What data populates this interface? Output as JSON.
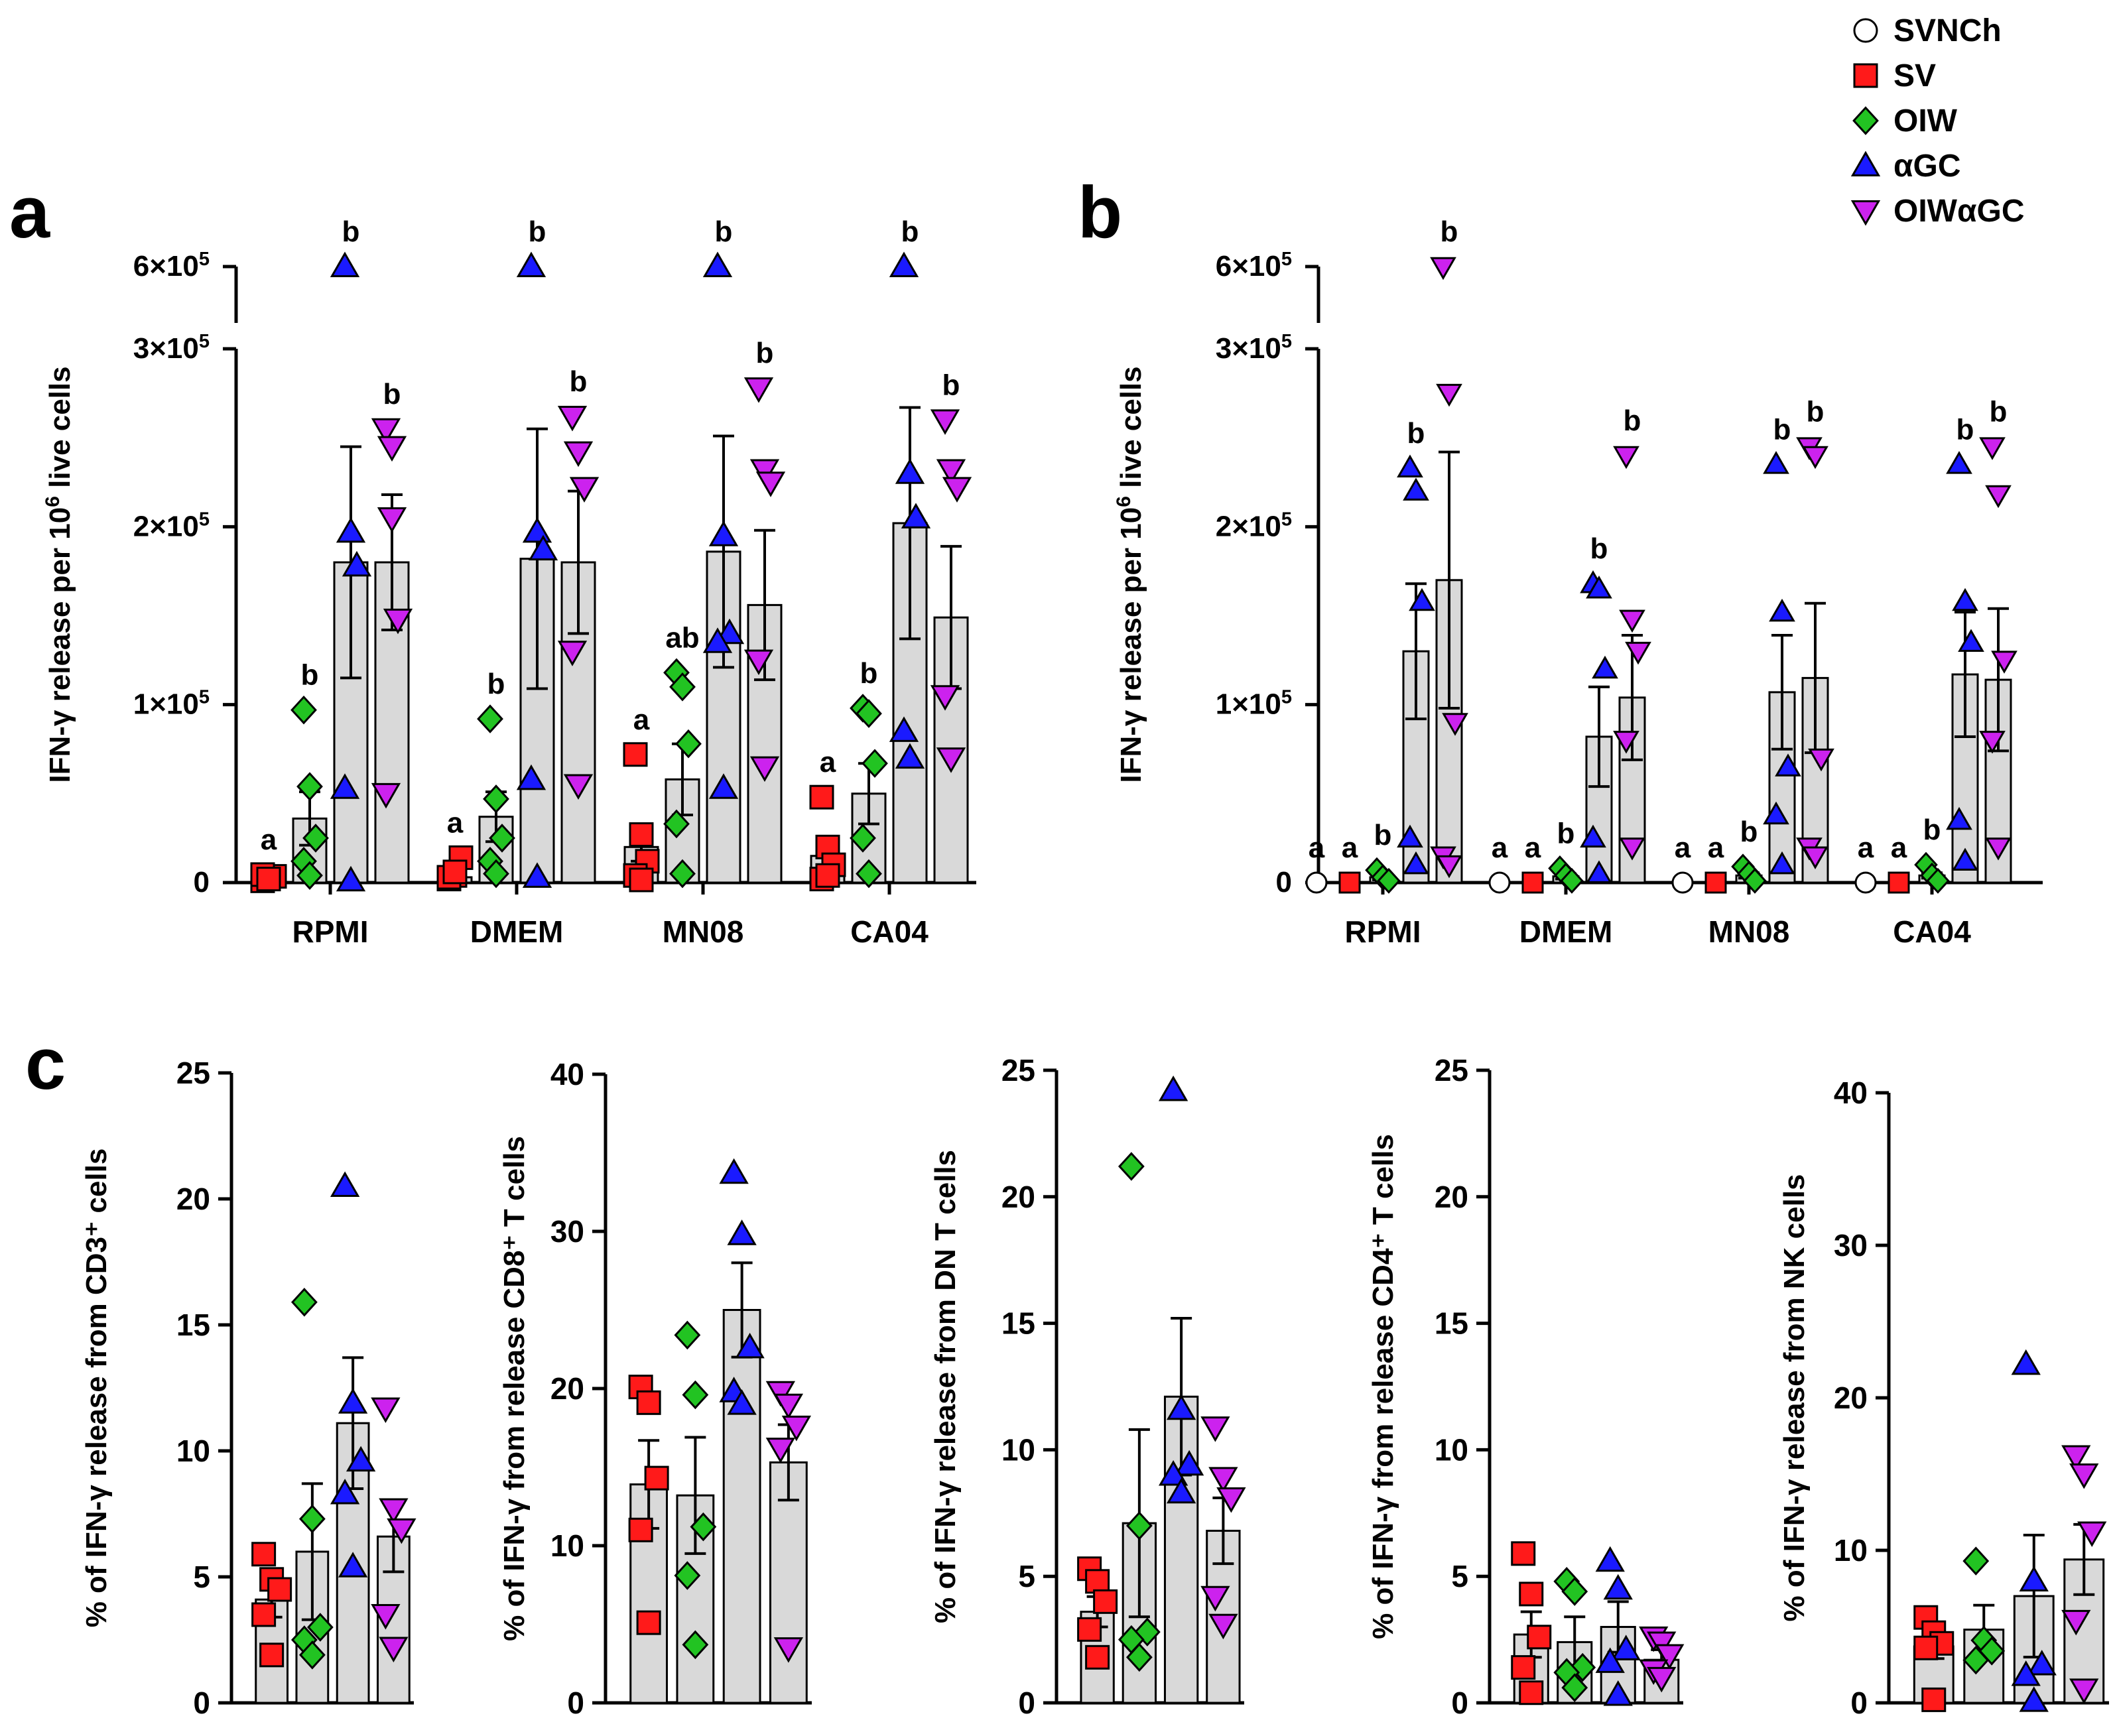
{
  "legend": [
    {
      "name": "SVNCh",
      "marker": "circle",
      "color": "#ffffff"
    },
    {
      "name": "SV",
      "marker": "square",
      "color": "#ff1a1a"
    },
    {
      "name": "OIW",
      "marker": "diamond",
      "color": "#22c322"
    },
    {
      "name": "αGC",
      "marker": "triangle",
      "color": "#1a1aff"
    },
    {
      "name": "OIWαGC",
      "marker": "triangle-down",
      "color": "#cc22ee"
    }
  ],
  "colors": {
    "bar_fill": "#d9d9d9",
    "axis": "#000000"
  },
  "chart_data": [
    {
      "panel_label": "a",
      "type": "bar",
      "ylabel_main": "IFN-γ release per 10",
      "ylabel_sup": "6",
      "ylabel_tail": " live cells",
      "categories": [
        "RPMI",
        "DMEM",
        "MN08",
        "CA04"
      ],
      "groups": [
        "SV",
        "OIW",
        "αGC",
        "OIWαGC"
      ],
      "ylim": [
        0,
        300000
      ],
      "broken_top_tick": {
        "base": "6×10",
        "exp": "5",
        "value": 600000
      },
      "yticks": [
        {
          "value": 0,
          "base": "0",
          "exp": ""
        },
        {
          "value": 100000,
          "base": "1×10",
          "exp": "5"
        },
        {
          "value": 200000,
          "base": "2×10",
          "exp": "5"
        },
        {
          "value": 300000,
          "base": "3×10",
          "exp": "5"
        }
      ],
      "series": [
        {
          "name": "SV",
          "marker": "square",
          "color": "#ff1a1a",
          "means": [
            2000,
            3000,
            20000,
            15000
          ],
          "sems": [
            1000,
            2000,
            8000,
            6000
          ],
          "letters": [
            "a",
            "a",
            "a",
            "a"
          ],
          "points": [
            [
              1000,
              2500,
              3500,
              4500,
              2000
            ],
            [
              2000,
              4000,
              14000,
              3000,
              6000
            ],
            [
              72000,
              27000,
              12000,
              4000,
              1500
            ],
            [
              48000,
              20000,
              10000,
              2000,
              4000
            ]
          ]
        },
        {
          "name": "OIW",
          "marker": "diamond",
          "color": "#22c322",
          "means": [
            36000,
            37000,
            58000,
            50000
          ],
          "sems": [
            15000,
            14000,
            20000,
            17000
          ],
          "letters": [
            "b",
            "b",
            "ab",
            "b"
          ],
          "points": [
            [
              97000,
              54000,
              25000,
              12000,
              4000
            ],
            [
              92000,
              47000,
              25000,
              12000,
              5000
            ],
            [
              118000,
              110000,
              78000,
              33000,
              5000
            ],
            [
              98000,
              95000,
              67000,
              25000,
              5000
            ]
          ]
        },
        {
          "name": "αGC",
          "marker": "triangle",
          "color": "#1a1aff",
          "means": [
            180000,
            182000,
            186000,
            202000
          ],
          "sems": [
            65000,
            73000,
            65000,
            65000
          ],
          "letters": [
            "b",
            "b",
            "b",
            "b"
          ],
          "points": [
            [
              600000,
              197000,
              178000,
              53000,
              1000
            ],
            [
              600000,
              197000,
              187000,
              58000,
              3000
            ],
            [
              600000,
              195000,
              140000,
              135000,
              53000
            ],
            [
              600000,
              230000,
              205000,
              85000,
              70000
            ]
          ]
        },
        {
          "name": "OIWαGC",
          "marker": "triangle-down",
          "color": "#cc22ee",
          "means": [
            180000,
            180000,
            156000,
            149000
          ],
          "sems": [
            38000,
            40000,
            42000,
            40000
          ],
          "letters": [
            "b",
            "b",
            "b",
            "b"
          ],
          "points": [
            [
              255000,
              245000,
              148000,
              50000,
              205000
            ],
            [
              262000,
              242000,
              222000,
              130000,
              55000
            ],
            [
              278000,
              232000,
              225000,
              125000,
              65000
            ],
            [
              260000,
              232000,
              222000,
              105000,
              70000
            ]
          ]
        }
      ]
    },
    {
      "panel_label": "b",
      "type": "bar",
      "ylabel_main": "IFN-γ release per 10",
      "ylabel_sup": "6",
      "ylabel_tail": " live cells",
      "categories": [
        "RPMI",
        "DMEM",
        "MN08",
        "CA04"
      ],
      "groups": [
        "SVNCh",
        "SV",
        "OIW",
        "αGC",
        "OIWαGC"
      ],
      "ylim": [
        0,
        300000
      ],
      "broken_top_tick": {
        "base": "6×10",
        "exp": "5",
        "value": 600000
      },
      "yticks": [
        {
          "value": 0,
          "base": "0",
          "exp": ""
        },
        {
          "value": 100000,
          "base": "1×10",
          "exp": "5"
        },
        {
          "value": 200000,
          "base": "2×10",
          "exp": "5"
        },
        {
          "value": 300000,
          "base": "3×10",
          "exp": "5"
        }
      ],
      "series": [
        {
          "name": "SVNCh",
          "marker": "circle",
          "color": "#ffffff",
          "means": [
            0,
            0,
            0,
            0
          ],
          "sems": [
            0,
            0,
            0,
            0
          ],
          "letters": [
            "a",
            "a",
            "a",
            "a"
          ],
          "points": [
            [
              0
            ],
            [
              0
            ],
            [
              0
            ],
            [
              0
            ]
          ]
        },
        {
          "name": "SV",
          "marker": "square",
          "color": "#ff1a1a",
          "means": [
            0,
            0,
            0,
            0
          ],
          "sems": [
            0,
            0,
            0,
            0
          ],
          "letters": [
            "a",
            "a",
            "a",
            "a"
          ],
          "points": [
            [
              0
            ],
            [
              0
            ],
            [
              0
            ],
            [
              0
            ]
          ]
        },
        {
          "name": "OIW",
          "marker": "diamond",
          "color": "#22c322",
          "means": [
            3000,
            3500,
            4000,
            4000
          ],
          "sems": [
            1500,
            1500,
            1500,
            1500
          ],
          "letters": [
            "b",
            "b",
            "b",
            "b"
          ],
          "points": [
            [
              7000,
              3000,
              1000
            ],
            [
              8000,
              4000,
              1000
            ],
            [
              9000,
              5000,
              1000
            ],
            [
              10000,
              4000,
              1000
            ]
          ]
        },
        {
          "name": "αGC",
          "marker": "triangle",
          "color": "#1a1aff",
          "means": [
            130000,
            82000,
            107000,
            117000
          ],
          "sems": [
            38000,
            28000,
            32000,
            35000
          ],
          "letters": [
            "b",
            "b",
            "b",
            "b"
          ],
          "points": [
            [
              233000,
              220000,
              158000,
              25000,
              10000
            ],
            [
              168000,
              165000,
              120000,
              25000,
              5000
            ],
            [
              235000,
              152000,
              65000,
              38000,
              10000
            ],
            [
              235000,
              158000,
              135000,
              35000,
              12000
            ]
          ]
        },
        {
          "name": "OIWαGC",
          "marker": "triangle-down",
          "color": "#cc22ee",
          "means": [
            170000,
            104000,
            115000,
            114000
          ],
          "sems": [
            72000,
            35000,
            42000,
            40000
          ],
          "letters": [
            "b",
            "b",
            "b",
            "b"
          ],
          "points": [
            [
              600000,
              275000,
              90000,
              15000,
              10000
            ],
            [
              240000,
              148000,
              130000,
              80000,
              20000
            ],
            [
              245000,
              240000,
              70000,
              20000,
              15000
            ],
            [
              245000,
              218000,
              125000,
              80000,
              20000
            ]
          ]
        }
      ]
    },
    {
      "panel_label": "c",
      "type": "bar",
      "ylabel": "% of IFN-γ release from CD3⁺ cells",
      "groups": [
        "SV",
        "OIW",
        "αGC",
        "OIWαGC"
      ],
      "ylim": [
        0,
        25
      ],
      "yticks": [
        0,
        5,
        10,
        15,
        20,
        25
      ],
      "series": [
        {
          "name": "SV",
          "marker": "square",
          "color": "#ff1a1a",
          "mean": 4.1,
          "sem": 0.7,
          "points": [
            5.9,
            4.9,
            4.5,
            3.5,
            1.9
          ]
        },
        {
          "name": "OIW",
          "marker": "diamond",
          "color": "#22c322",
          "mean": 6.0,
          "sem": 2.7,
          "points": [
            15.9,
            7.3,
            3.0,
            2.5,
            1.9
          ]
        },
        {
          "name": "αGC",
          "marker": "triangle",
          "color": "#1a1aff",
          "mean": 11.1,
          "sem": 2.6,
          "points": [
            20.5,
            11.9,
            9.6,
            8.3,
            5.4
          ]
        },
        {
          "name": "OIWαGC",
          "marker": "triangle-down",
          "color": "#cc22ee",
          "mean": 6.6,
          "sem": 1.4,
          "points": [
            11.7,
            7.7,
            6.9,
            3.5,
            2.2
          ]
        }
      ]
    },
    {
      "panel_label": "",
      "type": "bar",
      "ylabel": "% of IFN-γ from release CD8⁺ T cells",
      "groups": [
        "SV",
        "OIW",
        "αGC",
        "OIWαGC"
      ],
      "ylim": [
        0,
        40
      ],
      "yticks": [
        0,
        10,
        20,
        30,
        40
      ],
      "series": [
        {
          "name": "SV",
          "marker": "square",
          "color": "#ff1a1a",
          "mean": 13.9,
          "sem": 2.8,
          "points": [
            20.1,
            19.1,
            14.3,
            11.0,
            5.1
          ]
        },
        {
          "name": "OIW",
          "marker": "diamond",
          "color": "#22c322",
          "mean": 13.2,
          "sem": 3.7,
          "points": [
            23.4,
            19.6,
            11.2,
            8.1,
            3.7
          ]
        },
        {
          "name": "αGC",
          "marker": "triangle",
          "color": "#1a1aff",
          "mean": 25.0,
          "sem": 3.0,
          "points": [
            33.7,
            29.8,
            22.6,
            19.8,
            19.0
          ]
        },
        {
          "name": "OIWαGC",
          "marker": "triangle-down",
          "color": "#cc22ee",
          "mean": 15.3,
          "sem": 2.4,
          "points": [
            19.8,
            19.0,
            17.6,
            16.2,
            3.5
          ]
        }
      ]
    },
    {
      "panel_label": "",
      "type": "bar",
      "ylabel": "% of IFN-γ release from DN T cells",
      "groups": [
        "SV",
        "OIW",
        "αGC",
        "OIWαGC"
      ],
      "ylim": [
        0,
        25
      ],
      "yticks": [
        0,
        5,
        10,
        15,
        20,
        25
      ],
      "series": [
        {
          "name": "SV",
          "marker": "square",
          "color": "#ff1a1a",
          "mean": 3.6,
          "sem": 0.6,
          "points": [
            5.3,
            4.8,
            4.0,
            2.9,
            1.8
          ]
        },
        {
          "name": "OIW",
          "marker": "diamond",
          "color": "#22c322",
          "mean": 7.1,
          "sem": 3.7,
          "points": [
            21.2,
            7.0,
            2.8,
            2.5,
            1.8
          ]
        },
        {
          "name": "αGC",
          "marker": "triangle",
          "color": "#1a1aff",
          "mean": 12.1,
          "sem": 3.1,
          "points": [
            24.2,
            11.6,
            9.4,
            9.0,
            8.3
          ]
        },
        {
          "name": "OIWαGC",
          "marker": "triangle-down",
          "color": "#cc22ee",
          "mean": 6.8,
          "sem": 1.3,
          "points": [
            10.9,
            8.9,
            8.1,
            4.2,
            3.1
          ]
        }
      ]
    },
    {
      "panel_label": "",
      "type": "bar",
      "ylabel": "% of IFN-γ from release CD4⁺ T cells",
      "groups": [
        "SV",
        "OIW",
        "αGC",
        "OIWαGC"
      ],
      "ylim": [
        0,
        25
      ],
      "yticks": [
        0,
        5,
        10,
        15,
        20,
        25
      ],
      "series": [
        {
          "name": "SV",
          "marker": "square",
          "color": "#ff1a1a",
          "mean": 2.7,
          "sem": 0.9,
          "points": [
            5.9,
            4.3,
            2.6,
            1.4,
            0.4
          ]
        },
        {
          "name": "OIW",
          "marker": "diamond",
          "color": "#22c322",
          "mean": 2.4,
          "sem": 1.0,
          "points": [
            4.8,
            4.4,
            1.4,
            1.2,
            0.6
          ]
        },
        {
          "name": "αGC",
          "marker": "triangle",
          "color": "#1a1aff",
          "mean": 3.0,
          "sem": 1.0,
          "points": [
            5.6,
            4.5,
            2.1,
            1.6,
            0.3
          ]
        },
        {
          "name": "OIWαGC",
          "marker": "triangle-down",
          "color": "#cc22ee",
          "mean": 1.7,
          "sem": 0.4,
          "points": [
            2.6,
            2.4,
            1.9,
            1.3,
            1.0
          ]
        }
      ]
    },
    {
      "panel_label": "",
      "type": "bar",
      "ylabel": "% of IFN-γ  release from NK cells",
      "groups": [
        "SV",
        "OIW",
        "αGC",
        "OIWαGC"
      ],
      "ylim": [
        0,
        40
      ],
      "yticks": [
        0,
        10,
        20,
        30,
        40
      ],
      "series": [
        {
          "name": "SV",
          "marker": "square",
          "color": "#ff1a1a",
          "mean": 3.7,
          "sem": 0.8,
          "points": [
            5.6,
            4.6,
            3.9,
            3.6,
            0.2
          ]
        },
        {
          "name": "OIW",
          "marker": "diamond",
          "color": "#22c322",
          "mean": 4.8,
          "sem": 1.6,
          "points": [
            9.3,
            4.1,
            3.4,
            2.8
          ]
        },
        {
          "name": "αGC",
          "marker": "triangle",
          "color": "#1a1aff",
          "mean": 7.0,
          "sem": 4.0,
          "points": [
            22.2,
            8.0,
            2.5,
            1.8,
            0.1
          ]
        },
        {
          "name": "OIWαGC",
          "marker": "triangle-down",
          "color": "#cc22ee",
          "mean": 9.4,
          "sem": 2.3,
          "points": [
            16.2,
            15.0,
            11.2,
            5.4,
            0.9
          ]
        }
      ]
    }
  ]
}
